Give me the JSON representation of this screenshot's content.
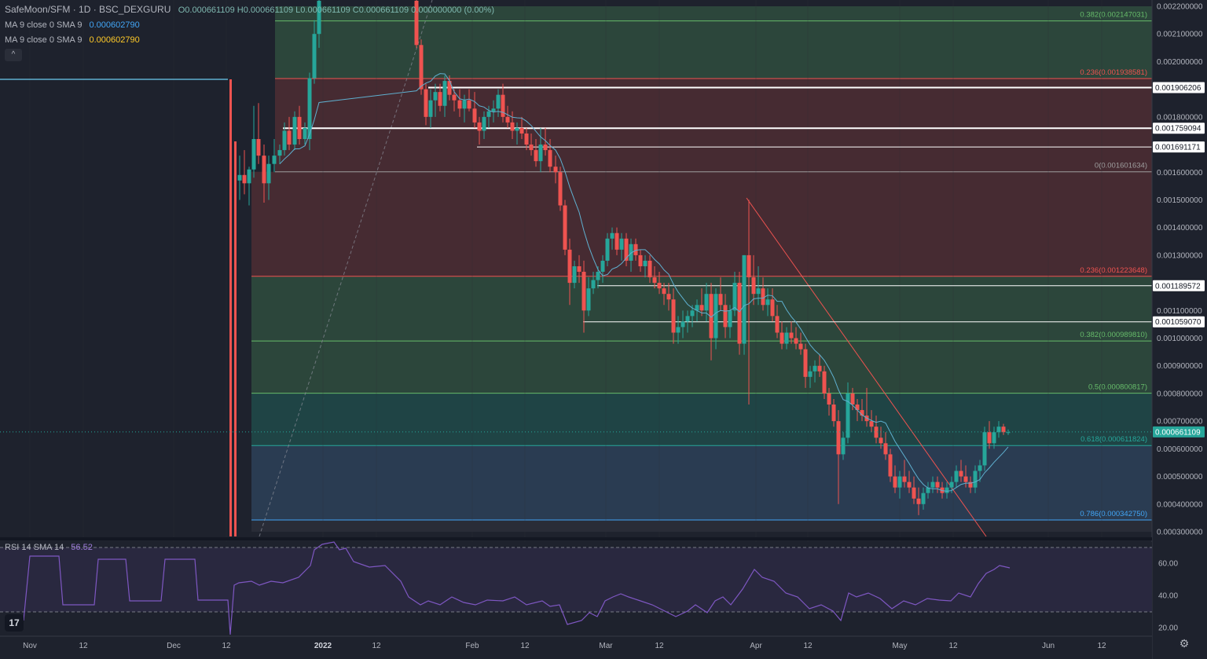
{
  "header": {
    "symbol": "SafeMoon/SFM · 1D · BSC_DEXGURU",
    "ohlc": "O0.000661109  H0.000661109  L0.000661109  C0.000661109  0.000000000 (0.00%)",
    "ma1_label": "MA 9 close 0 SMA 9",
    "ma1_value": "0.000602790",
    "ma2_label": "MA 9 close 0 SMA 9",
    "ma2_value": "0.000602790",
    "collapse_glyph": "^"
  },
  "rsi": {
    "label": "RSI 14 SMA 14",
    "value": "56.52",
    "ticks": [
      "60.00",
      "40.00",
      "20.00"
    ]
  },
  "colors": {
    "up": "#26a69a",
    "down": "#ef5350",
    "ma": "#5fb0d0",
    "rsi": "#7e57c2",
    "fib_red": "#4a2c33",
    "fib_green": "#2e4a3d",
    "fib_teal": "#1f4848",
    "fib_blue": "#2b3f57"
  },
  "chart_data": {
    "type": "candlestick",
    "symbol": "SafeMoon/SFM",
    "interval": "1D",
    "y_ticks": [
      "0.002200000",
      "0.002100000",
      "0.002000000",
      "0.001800000",
      "0.001700000",
      "0.001600000",
      "0.001500000",
      "0.001400000",
      "0.001300000",
      "0.001100000",
      "0.001000000",
      "0.000900000",
      "0.000800000",
      "0.000700000",
      "0.000600000",
      "0.000500000",
      "0.000400000",
      "0.000300000"
    ],
    "x_ticks": [
      "Nov",
      "12",
      "Dec",
      "12",
      "2022",
      "12",
      "Feb",
      "12",
      "Mar",
      "12",
      "Apr",
      "12",
      "May",
      "12",
      "Jun",
      "12"
    ],
    "fib_levels": [
      {
        "label": "0.382(0.002147031)",
        "value": 0.002147031
      },
      {
        "label": "0.236(0.001938581)",
        "value": 0.001938581
      },
      {
        "label": "0(0.001601634)",
        "value": 0.001601634
      },
      {
        "label": "0.236(0.001223648)",
        "value": 0.001223648
      },
      {
        "label": "0.382(0.000989810)",
        "value": 0.00098981
      },
      {
        "label": "0.5(0.000800817)",
        "value": 0.000800817
      },
      {
        "label": "0.618(0.000611824)",
        "value": 0.000611824
      },
      {
        "label": "0.786(0.000342750)",
        "value": 0.00034275
      }
    ],
    "horizontal_lines": [
      {
        "label": "0.001906206",
        "value": 0.001906206
      },
      {
        "label": "0.001759094",
        "value": 0.001759094
      },
      {
        "label": "0.001691171",
        "value": 0.001691171
      },
      {
        "label": "0.001189572",
        "value": 0.001189572
      },
      {
        "label": "0.001059070",
        "value": 0.00105907
      }
    ],
    "last_price": {
      "label": "0.000661109",
      "value": 0.000661109
    }
  }
}
